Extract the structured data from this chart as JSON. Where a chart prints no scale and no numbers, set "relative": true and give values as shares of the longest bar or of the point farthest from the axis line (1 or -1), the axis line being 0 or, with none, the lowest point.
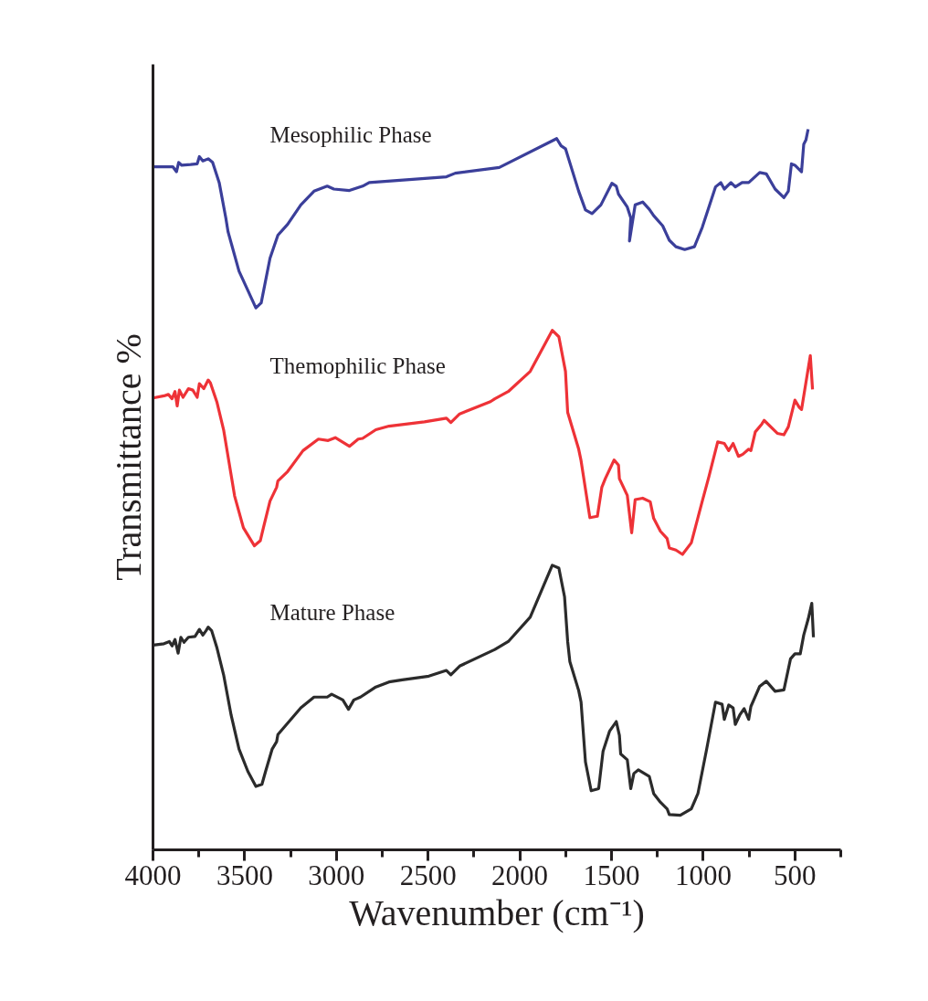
{
  "chart_data": {
    "type": "line",
    "relative": true,
    "xlabel": "Wavenumber (cm⁻¹)",
    "ylabel": "Transmittance %",
    "xlim": [
      4000,
      250
    ],
    "xticks": [
      4000,
      {
        "value": 3750,
        "label": null
      },
      3500,
      {
        "value": 3250,
        "label": null
      },
      3000,
      {
        "value": 2750,
        "label": null
      },
      2500,
      {
        "value": 2250,
        "label": null
      },
      2000,
      {
        "value": 1750,
        "label": null
      },
      1500,
      {
        "value": 1250,
        "label": null
      },
      1000,
      {
        "value": 750,
        "label": null
      },
      500,
      {
        "value": 250,
        "label": null
      }
    ],
    "grid": false,
    "legend": false,
    "marker": "none",
    "line_style": "solid",
    "series": [
      {
        "name": "Mesophilic Phase",
        "color": "#3b3f9a",
        "x": [
          4000,
          3892,
          3872,
          3860,
          3843,
          3795,
          3759,
          3747,
          3728,
          3699,
          3675,
          3639,
          3603,
          3591,
          3531,
          3439,
          3410,
          3362,
          3319,
          3266,
          3194,
          3122,
          3050,
          3014,
          2929,
          2857,
          2821,
          2400,
          2352,
          2112,
          1799,
          1775,
          1751,
          1679,
          1642,
          1606,
          1558,
          1498,
          1474,
          1462,
          1414,
          1395,
          1402,
          1371,
          1330,
          1294,
          1270,
          1221,
          1185,
          1149,
          1101,
          1048,
          1005,
          933,
          904,
          885,
          849,
          825,
          788,
          752,
          692,
          656,
          608,
          560,
          536,
          519,
          500,
          464,
          452,
          440,
          428
        ],
        "values": [
          0.948,
          0.948,
          0.941,
          0.954,
          0.95,
          0.951,
          0.952,
          0.962,
          0.956,
          0.959,
          0.954,
          0.926,
          0.877,
          0.858,
          0.803,
          0.752,
          0.759,
          0.821,
          0.853,
          0.868,
          0.895,
          0.914,
          0.921,
          0.917,
          0.915,
          0.921,
          0.926,
          0.934,
          0.939,
          0.947,
          0.987,
          0.977,
          0.973,
          0.914,
          0.888,
          0.883,
          0.895,
          0.925,
          0.921,
          0.91,
          0.892,
          0.877,
          0.845,
          0.895,
          0.899,
          0.889,
          0.88,
          0.866,
          0.846,
          0.837,
          0.833,
          0.837,
          0.864,
          0.92,
          0.926,
          0.917,
          0.926,
          0.92,
          0.926,
          0.926,
          0.94,
          0.938,
          0.917,
          0.905,
          0.914,
          0.952,
          0.95,
          0.941,
          0.979,
          0.985,
          1.0
        ]
      },
      {
        "name": "Themophilic Phase",
        "color": "#ee3237",
        "x": [
          4000,
          3940,
          3916,
          3896,
          3880,
          3868,
          3856,
          3836,
          3807,
          3783,
          3759,
          3747,
          3723,
          3699,
          3687,
          3651,
          3615,
          3579,
          3555,
          3507,
          3447,
          3415,
          3398,
          3362,
          3326,
          3319,
          3266,
          3182,
          3098,
          3045,
          3006,
          2929,
          2881,
          2857,
          2785,
          2713,
          2520,
          2400,
          2376,
          2328,
          2160,
          2136,
          2063,
          1943,
          1823,
          1787,
          1751,
          1739,
          1679,
          1666,
          1618,
          1577,
          1553,
          1534,
          1486,
          1462,
          1457,
          1414,
          1402,
          1390,
          1371,
          1330,
          1289,
          1270,
          1233,
          1197,
          1185,
          1149,
          1113,
          1065,
          1005,
          969,
          921,
          885,
          861,
          837,
          808,
          784,
          752,
          740,
          716,
          680,
          668,
          596,
          560,
          536,
          500,
          476,
          464,
          416,
          404
        ],
        "values": [
          0.627,
          0.63,
          0.632,
          0.626,
          0.636,
          0.616,
          0.638,
          0.628,
          0.64,
          0.638,
          0.628,
          0.647,
          0.64,
          0.652,
          0.648,
          0.621,
          0.583,
          0.528,
          0.491,
          0.447,
          0.422,
          0.429,
          0.447,
          0.484,
          0.503,
          0.512,
          0.525,
          0.554,
          0.57,
          0.568,
          0.572,
          0.56,
          0.57,
          0.571,
          0.583,
          0.588,
          0.594,
          0.599,
          0.593,
          0.605,
          0.622,
          0.626,
          0.636,
          0.664,
          0.721,
          0.712,
          0.664,
          0.607,
          0.556,
          0.54,
          0.461,
          0.463,
          0.503,
          0.515,
          0.541,
          0.534,
          0.515,
          0.492,
          0.466,
          0.44,
          0.486,
          0.488,
          0.483,
          0.46,
          0.442,
          0.432,
          0.419,
          0.416,
          0.41,
          0.426,
          0.484,
          0.518,
          0.566,
          0.564,
          0.554,
          0.564,
          0.546,
          0.549,
          0.556,
          0.554,
          0.58,
          0.591,
          0.596,
          0.578,
          0.576,
          0.587,
          0.624,
          0.614,
          0.611,
          0.686,
          0.639
        ]
      },
      {
        "name": "Mature Phase",
        "color": "#2b2b2b",
        "x": [
          4000,
          3940,
          3911,
          3896,
          3880,
          3863,
          3848,
          3831,
          3807,
          3771,
          3747,
          3728,
          3711,
          3699,
          3680,
          3651,
          3615,
          3574,
          3531,
          3483,
          3439,
          3406,
          3386,
          3350,
          3326,
          3319,
          3194,
          3122,
          3050,
          3026,
          2965,
          2934,
          2905,
          2869,
          2785,
          2713,
          2641,
          2496,
          2400,
          2376,
          2328,
          2136,
          2063,
          1943,
          1823,
          1787,
          1756,
          1739,
          1727,
          1679,
          1666,
          1642,
          1611,
          1570,
          1546,
          1510,
          1474,
          1457,
          1450,
          1414,
          1395,
          1378,
          1354,
          1294,
          1270,
          1233,
          1197,
          1185,
          1125,
          1065,
          1029,
          981,
          933,
          897,
          885,
          861,
          837,
          825,
          801,
          777,
          752,
          740,
          692,
          656,
          608,
          560,
          524,
          500,
          471,
          452,
          428,
          408,
          399
        ],
        "values": [
          0.284,
          0.286,
          0.289,
          0.283,
          0.292,
          0.273,
          0.295,
          0.288,
          0.295,
          0.296,
          0.306,
          0.298,
          0.304,
          0.309,
          0.304,
          0.28,
          0.243,
          0.187,
          0.14,
          0.109,
          0.088,
          0.091,
          0.109,
          0.14,
          0.15,
          0.16,
          0.197,
          0.212,
          0.212,
          0.216,
          0.208,
          0.195,
          0.208,
          0.212,
          0.226,
          0.233,
          0.236,
          0.241,
          0.249,
          0.243,
          0.255,
          0.278,
          0.289,
          0.323,
          0.395,
          0.391,
          0.351,
          0.289,
          0.261,
          0.221,
          0.205,
          0.122,
          0.082,
          0.085,
          0.137,
          0.165,
          0.178,
          0.159,
          0.133,
          0.125,
          0.085,
          0.106,
          0.111,
          0.102,
          0.078,
          0.066,
          0.057,
          0.049,
          0.048,
          0.057,
          0.078,
          0.14,
          0.205,
          0.202,
          0.181,
          0.201,
          0.197,
          0.174,
          0.187,
          0.196,
          0.181,
          0.199,
          0.227,
          0.234,
          0.22,
          0.222,
          0.265,
          0.272,
          0.272,
          0.298,
          0.32,
          0.342,
          0.295
        ]
      }
    ]
  }
}
